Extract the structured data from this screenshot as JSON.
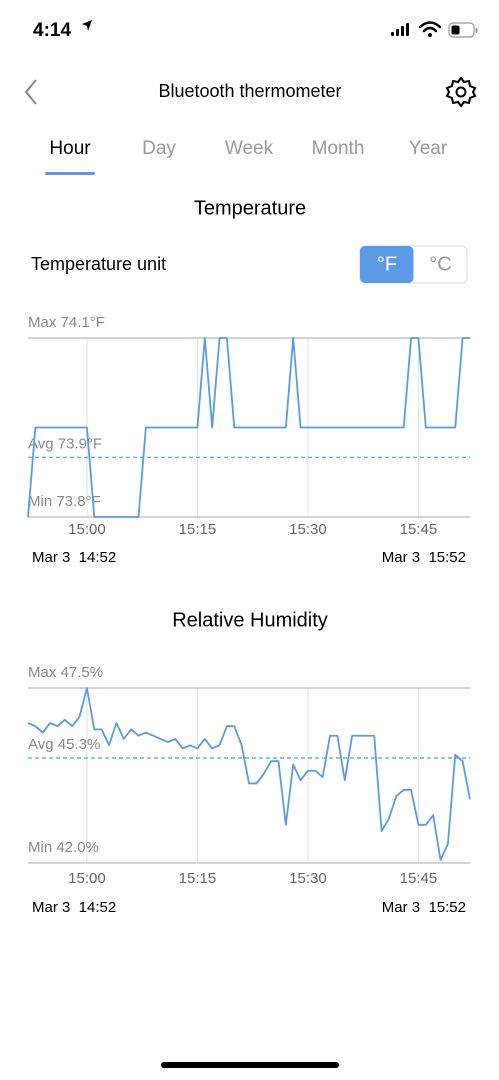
{
  "status_bar": {
    "time": "4:14"
  },
  "header": {
    "title": "Bluetooth thermometer"
  },
  "tabs": {
    "items": [
      "Hour",
      "Day",
      "Week",
      "Month",
      "Year"
    ],
    "selected": 0
  },
  "temperature_unit": {
    "label": "Temperature unit",
    "options": [
      "°F",
      "°C"
    ],
    "selected": 0
  },
  "chart_data": [
    {
      "type": "line",
      "title": "Temperature",
      "color": "#5b9be6",
      "x": [
        "14:52",
        "14:53",
        "14:54",
        "14:55",
        "14:56",
        "14:57",
        "14:58",
        "14:59",
        "15:00",
        "15:01",
        "15:02",
        "15:03",
        "15:04",
        "15:05",
        "15:06",
        "15:07",
        "15:08",
        "15:09",
        "15:10",
        "15:11",
        "15:12",
        "15:13",
        "15:14",
        "15:15",
        "15:16",
        "15:17",
        "15:18",
        "15:19",
        "15:20",
        "15:21",
        "15:22",
        "15:23",
        "15:24",
        "15:25",
        "15:26",
        "15:27",
        "15:28",
        "15:29",
        "15:30",
        "15:31",
        "15:32",
        "15:33",
        "15:34",
        "15:35",
        "15:36",
        "15:37",
        "15:38",
        "15:39",
        "15:40",
        "15:41",
        "15:42",
        "15:43",
        "15:44",
        "15:45",
        "15:46",
        "15:47",
        "15:48",
        "15:49",
        "15:50",
        "15:51",
        "15:52"
      ],
      "values": [
        73.8,
        73.95,
        73.95,
        73.95,
        73.95,
        73.95,
        73.95,
        73.95,
        73.95,
        73.8,
        73.8,
        73.8,
        73.8,
        73.8,
        73.8,
        73.8,
        73.95,
        73.95,
        73.95,
        73.95,
        73.95,
        73.95,
        73.95,
        73.95,
        74.1,
        73.95,
        74.1,
        74.1,
        73.95,
        73.95,
        73.95,
        73.95,
        73.95,
        73.95,
        73.95,
        73.95,
        74.1,
        73.95,
        73.95,
        73.95,
        73.95,
        73.95,
        73.95,
        73.95,
        73.95,
        73.95,
        73.95,
        73.95,
        73.95,
        73.95,
        73.95,
        73.95,
        74.1,
        74.1,
        73.95,
        73.95,
        73.95,
        73.95,
        73.95,
        74.1,
        74.1
      ],
      "xlim": [
        "14:52",
        "15:52"
      ],
      "xticks": [
        "15:00",
        "15:15",
        "15:30",
        "15:45"
      ],
      "ylim": [
        73.8,
        74.1
      ],
      "yticks": [
        {
          "value": 74.1,
          "label": "Max 74.1°F"
        },
        {
          "value": 73.8,
          "label": "Min 73.8°F"
        }
      ],
      "avg": {
        "value": 73.9,
        "label": "Avg 73.9°F"
      },
      "range_labels": [
        "Mar 3  14:52",
        "Mar 3  15:52"
      ]
    },
    {
      "type": "line",
      "title": "Relative Humidity",
      "color": "#5b9be6",
      "x": [
        "14:52",
        "14:53",
        "14:54",
        "14:55",
        "14:56",
        "14:57",
        "14:58",
        "14:59",
        "15:00",
        "15:01",
        "15:02",
        "15:03",
        "15:04",
        "15:05",
        "15:06",
        "15:07",
        "15:08",
        "15:09",
        "15:10",
        "15:11",
        "15:12",
        "15:13",
        "15:14",
        "15:15",
        "15:16",
        "15:17",
        "15:18",
        "15:19",
        "15:20",
        "15:21",
        "15:22",
        "15:23",
        "15:24",
        "15:25",
        "15:26",
        "15:27",
        "15:28",
        "15:29",
        "15:30",
        "15:31",
        "15:32",
        "15:33",
        "15:34",
        "15:35",
        "15:36",
        "15:37",
        "15:38",
        "15:39",
        "15:40",
        "15:41",
        "15:42",
        "15:43",
        "15:44",
        "15:45",
        "15:46",
        "15:47",
        "15:48",
        "15:49",
        "15:50",
        "15:51",
        "15:52"
      ],
      "values": [
        46.4,
        46.3,
        46.1,
        46.4,
        46.3,
        46.5,
        46.3,
        46.6,
        47.5,
        46.2,
        46.2,
        45.7,
        46.4,
        45.9,
        46.2,
        46.0,
        46.1,
        46.0,
        45.9,
        45.8,
        45.9,
        45.6,
        45.7,
        45.6,
        45.9,
        45.6,
        45.7,
        46.3,
        46.3,
        45.7,
        44.5,
        44.5,
        44.8,
        45.2,
        45.2,
        43.2,
        45.1,
        44.6,
        44.9,
        44.9,
        44.7,
        46.0,
        46.0,
        44.6,
        46.0,
        46.0,
        46.0,
        46.0,
        43.0,
        43.4,
        44.1,
        44.3,
        44.3,
        43.2,
        43.2,
        43.5,
        42.1,
        42.6,
        45.4,
        45.2,
        44.0
      ],
      "xlim": [
        "14:52",
        "15:52"
      ],
      "xticks": [
        "15:00",
        "15:15",
        "15:30",
        "15:45"
      ],
      "ylim": [
        42.0,
        47.5
      ],
      "yticks": [
        {
          "value": 47.5,
          "label": "Max 47.5%"
        },
        {
          "value": 42.0,
          "label": "Min 42.0%"
        }
      ],
      "avg": {
        "value": 45.3,
        "label": "Avg 45.3%"
      },
      "range_labels": [
        "Mar 3  14:52",
        "Mar 3  15:52"
      ]
    }
  ]
}
